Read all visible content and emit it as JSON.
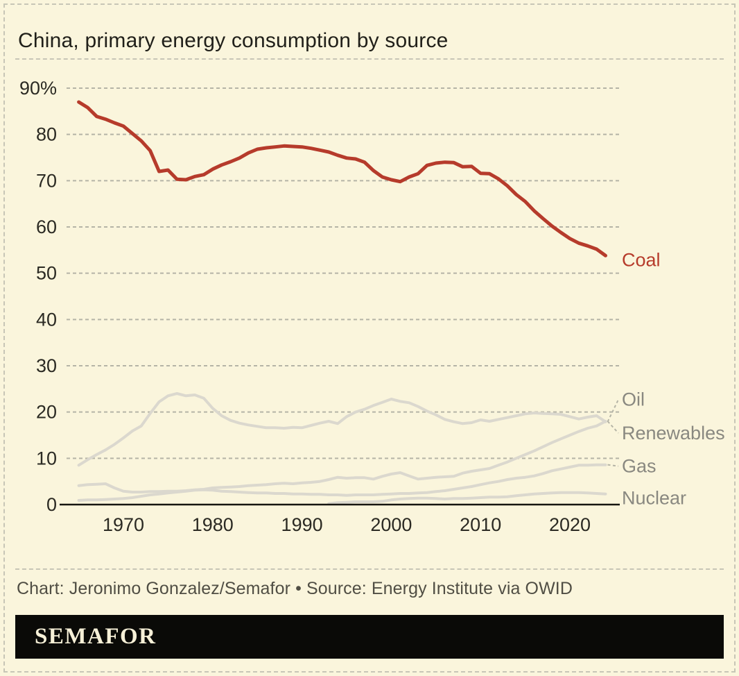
{
  "title": "China, primary energy consumption by source",
  "caption": "Chart: Jeronimo Gonzalez/Semafor • Source: Energy Institute via OWID",
  "logo_text": "SEMAFOR",
  "colors": {
    "background": "#faf5dc",
    "coal_red": "#b63b2b",
    "muted_line_gray": "#dbd8ce",
    "grid_gray": "#b5b4a6",
    "axis_black": "#16150f",
    "tick_text": "#2b2a23",
    "muted_label_gray": "#898880",
    "caption_text": "#504e44",
    "logo_background": "#0a0a07",
    "logo_text_color": "#f6f0d7",
    "border_dash": "#c7c5b6"
  },
  "chart_data": {
    "type": "line",
    "title": "China, primary energy consumption by source",
    "unit": "%",
    "ylim": [
      0,
      90
    ],
    "grid": "horizontal-dashed",
    "legend_position": "right-end-labels",
    "xticks": [
      1970,
      1980,
      1990,
      2000,
      2010,
      2020
    ],
    "yticks": [
      {
        "v": 90,
        "label": "90%"
      },
      {
        "v": 80,
        "label": "80"
      },
      {
        "v": 70,
        "label": "70"
      },
      {
        "v": 60,
        "label": "60"
      },
      {
        "v": 50,
        "label": "50"
      },
      {
        "v": 40,
        "label": "40"
      },
      {
        "v": 30,
        "label": "30"
      },
      {
        "v": 20,
        "label": "20"
      },
      {
        "v": 10,
        "label": "10"
      },
      {
        "v": 0,
        "label": "0"
      }
    ],
    "x": [
      1965,
      1966,
      1967,
      1968,
      1969,
      1970,
      1971,
      1972,
      1973,
      1974,
      1975,
      1976,
      1977,
      1978,
      1979,
      1980,
      1981,
      1982,
      1983,
      1984,
      1985,
      1986,
      1987,
      1988,
      1989,
      1990,
      1991,
      1992,
      1993,
      1994,
      1995,
      1996,
      1997,
      1998,
      1999,
      2000,
      2001,
      2002,
      2003,
      2004,
      2005,
      2006,
      2007,
      2008,
      2009,
      2010,
      2011,
      2012,
      2013,
      2014,
      2015,
      2016,
      2017,
      2018,
      2019,
      2020,
      2021,
      2022,
      2023,
      2024
    ],
    "series": [
      {
        "name": "Coal",
        "color": "#b63b2b",
        "emphasis": true,
        "values": [
          87.0,
          85.8,
          83.9,
          83.3,
          82.5,
          81.8,
          80.2,
          78.6,
          76.5,
          72.0,
          72.3,
          70.3,
          70.2,
          70.9,
          71.3,
          72.5,
          73.4,
          74.1,
          74.9,
          76.0,
          76.8,
          77.1,
          77.3,
          77.5,
          77.4,
          77.3,
          77.0,
          76.6,
          76.2,
          75.5,
          74.9,
          74.7,
          74.0,
          72.2,
          70.8,
          70.2,
          69.8,
          70.8,
          71.5,
          73.3,
          73.8,
          74.0,
          73.9,
          73.0,
          73.1,
          71.6,
          71.5,
          70.4,
          68.9,
          67.0,
          65.5,
          63.5,
          61.8,
          60.2,
          58.8,
          57.5,
          56.5,
          55.9,
          55.2,
          53.8
        ]
      },
      {
        "name": "Oil",
        "color": "#dbd8ce",
        "emphasis": false,
        "values": [
          8.5,
          9.7,
          10.8,
          11.8,
          13.0,
          14.4,
          15.9,
          17.0,
          19.7,
          22.2,
          23.5,
          24.0,
          23.5,
          23.7,
          23.0,
          20.8,
          19.2,
          18.2,
          17.6,
          17.2,
          16.9,
          16.6,
          16.6,
          16.5,
          16.7,
          16.6,
          17.1,
          17.6,
          18.0,
          17.5,
          19.0,
          20.0,
          20.6,
          21.4,
          22.1,
          22.8,
          22.3,
          22.0,
          21.2,
          20.2,
          19.4,
          18.4,
          17.9,
          17.5,
          17.7,
          18.3,
          18.0,
          18.4,
          18.8,
          19.2,
          19.6,
          19.8,
          19.7,
          19.6,
          19.5,
          19.0,
          18.5,
          18.9,
          19.2,
          17.9
        ]
      },
      {
        "name": "Renewables",
        "color": "#dbd8ce",
        "emphasis": false,
        "values": [
          4.1,
          4.3,
          4.4,
          4.5,
          3.6,
          2.9,
          2.7,
          2.7,
          2.8,
          2.8,
          2.9,
          2.9,
          3.0,
          3.2,
          3.3,
          3.6,
          3.7,
          3.8,
          3.9,
          4.1,
          4.2,
          4.3,
          4.5,
          4.6,
          4.5,
          4.7,
          4.8,
          5.0,
          5.4,
          5.9,
          5.7,
          5.8,
          5.8,
          5.5,
          6.1,
          6.6,
          6.9,
          6.2,
          5.5,
          5.7,
          5.9,
          6.0,
          6.1,
          6.8,
          7.2,
          7.5,
          7.8,
          8.5,
          9.2,
          10.0,
          10.8,
          11.6,
          12.5,
          13.4,
          14.2,
          15.0,
          15.8,
          16.5,
          17.0,
          18.0
        ]
      },
      {
        "name": "Gas",
        "color": "#dbd8ce",
        "emphasis": false,
        "values": [
          0.9,
          1.0,
          1.0,
          1.1,
          1.2,
          1.3,
          1.5,
          1.8,
          2.1,
          2.3,
          2.5,
          2.7,
          2.9,
          3.1,
          3.2,
          3.1,
          2.9,
          2.8,
          2.7,
          2.6,
          2.5,
          2.5,
          2.4,
          2.4,
          2.3,
          2.3,
          2.2,
          2.2,
          2.1,
          2.1,
          2.0,
          2.1,
          2.1,
          2.1,
          2.2,
          2.3,
          2.4,
          2.4,
          2.5,
          2.6,
          2.8,
          3.0,
          3.3,
          3.6,
          3.9,
          4.3,
          4.7,
          5.0,
          5.4,
          5.7,
          5.9,
          6.2,
          6.7,
          7.3,
          7.7,
          8.1,
          8.5,
          8.5,
          8.6,
          8.6
        ]
      },
      {
        "name": "Nuclear",
        "color": "#dbd8ce",
        "emphasis": false,
        "values": [
          null,
          null,
          null,
          null,
          null,
          null,
          null,
          null,
          null,
          null,
          null,
          null,
          null,
          null,
          null,
          null,
          null,
          null,
          null,
          null,
          null,
          null,
          null,
          null,
          null,
          null,
          null,
          null,
          0.2,
          0.4,
          0.5,
          0.6,
          0.6,
          0.6,
          0.7,
          1.0,
          1.2,
          1.3,
          1.4,
          1.4,
          1.3,
          1.2,
          1.3,
          1.3,
          1.4,
          1.5,
          1.6,
          1.6,
          1.7,
          1.9,
          2.1,
          2.3,
          2.4,
          2.5,
          2.6,
          2.6,
          2.6,
          2.5,
          2.4,
          2.3
        ]
      }
    ]
  }
}
